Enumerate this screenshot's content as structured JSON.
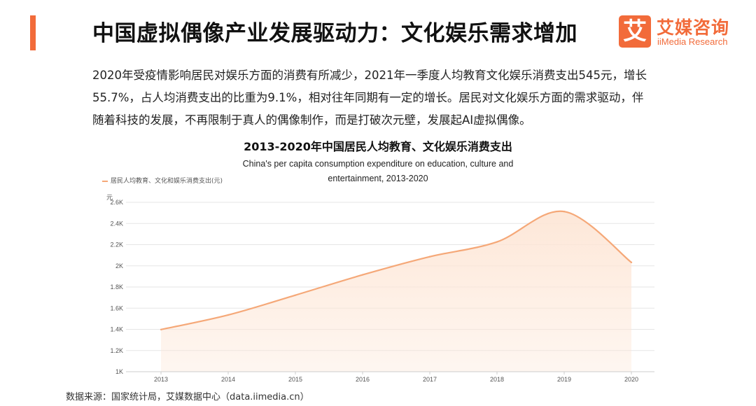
{
  "header": {
    "title": "中国虚拟偶像产业发展驱动力：文化娱乐需求增加"
  },
  "logo": {
    "mark": "艾",
    "name_cn": "艾媒咨询",
    "name_en": "iiMedia Research"
  },
  "body": {
    "paragraph": "2020年受疫情影响居民对娱乐方面的消费有所减少，2021年一季度人均教育文化娱乐消费支出545元，增长55.7%，占人均消费支出的比重为9.1%，相对往年同期有一定的增长。居民对文化娱乐方面的需求驱动，伴随着科技的发展，不再限制于真人的偶像制作，而是打破次元壁，发展起AI虚拟偶像。"
  },
  "chart_data": {
    "type": "area",
    "title": "2013-2020年中国居民人均教育、文化娱乐消费支出",
    "subtitle": "China's per capita consumption expenditure on education, culture and entertainment, 2013-2020",
    "legend_label": "居民人均教育、文化和娱乐消费支出(元)",
    "ylabel": "元",
    "x": [
      "2013",
      "2014",
      "2015",
      "2016",
      "2017",
      "2018",
      "2019",
      "2020"
    ],
    "values": [
      1398,
      1536,
      1723,
      1915,
      2086,
      2226,
      2513,
      2032
    ],
    "ylim": [
      1000,
      2600
    ],
    "yticks": [
      1000,
      1200,
      1400,
      1600,
      1800,
      2000,
      2200,
      2400,
      2600
    ],
    "ytick_labels": [
      "1K",
      "1.2K",
      "1.4K",
      "1.6K",
      "1.8K",
      "2K",
      "2.2K",
      "2.4K",
      "2.6K"
    ],
    "grid": true,
    "smooth": true,
    "legend_position": "top-left"
  },
  "footer": {
    "source": "数据来源：国家统计局，艾媒数据中心（data.iimedia.cn）"
  },
  "colors": {
    "accent": "#f26b3a",
    "line": "#f5a878",
    "fill": "#fde6d6",
    "grid": "#e6e6e6"
  }
}
